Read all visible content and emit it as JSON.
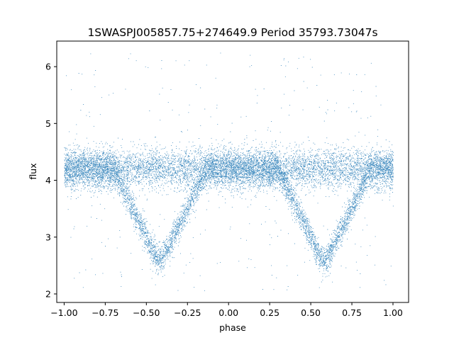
{
  "chart_data": {
    "type": "scatter",
    "title": "1SWASPJ005857.75+274649.9 Period 35793.73047s",
    "xlabel": "phase",
    "ylabel": "flux",
    "xlim": [
      -1.045,
      1.095
    ],
    "ylim": [
      1.85,
      6.45
    ],
    "xticks": [
      -1.0,
      -0.75,
      -0.5,
      -0.25,
      0.0,
      0.25,
      0.5,
      0.75,
      1.0
    ],
    "xtick_labels": [
      "−1.00",
      "−0.75",
      "−0.50",
      "−0.25",
      "0.00",
      "0.25",
      "0.50",
      "0.75",
      "1.00"
    ],
    "yticks": [
      2,
      3,
      4,
      5,
      6
    ],
    "ytick_labels": [
      "2",
      "3",
      "4",
      "5",
      "6"
    ],
    "grid": false,
    "point_color": "#1f77b4",
    "baseline_flux": 4.2,
    "eclipses": [
      {
        "phase_center": -0.42,
        "min_flux": 2.6,
        "ingress_phase": -0.7,
        "egress_phase": -0.13
      },
      {
        "phase_center": 0.58,
        "min_flux": 2.6,
        "ingress_phase": 0.3,
        "egress_phase": 0.87
      }
    ],
    "phase_range": [
      -1.0,
      1.0
    ],
    "flux_range": [
      2.05,
      6.25
    ]
  }
}
